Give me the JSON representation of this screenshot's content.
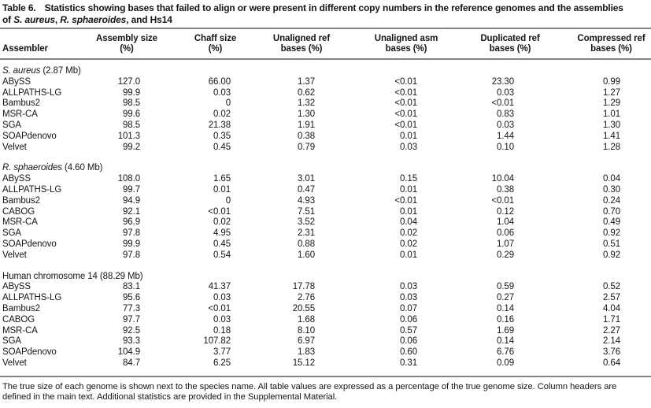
{
  "colors": {
    "background": "#ffffff",
    "text": "#151515",
    "rule": "#848484"
  },
  "table": {
    "title": {
      "line1_segments": [
        {
          "text": "Table 6.",
          "label": true
        },
        {
          "text": "Statistics showing bases that failed to align or were present in different copy numbers in the reference genomes and the assemblies"
        }
      ],
      "line2_segments": [
        {
          "text": "of "
        },
        {
          "text": "S. aureus",
          "italic": true
        },
        {
          "text": ", "
        },
        {
          "text": "R. sphaeroides",
          "italic": true
        },
        {
          "text": ", and Hs14"
        }
      ]
    },
    "columns": [
      {
        "line1": "Assembler",
        "line2": ""
      },
      {
        "line1": "Assembly size",
        "line2": "(%)"
      },
      {
        "line1": "Chaff size",
        "line2": "(%)"
      },
      {
        "line1": "Unaligned ref",
        "line2": "bases (%)"
      },
      {
        "line1": "Unaligned asm",
        "line2": "bases (%)"
      },
      {
        "line1": "Duplicated ref",
        "line2": "bases (%)"
      },
      {
        "line1": "Compressed ref",
        "line2": "bases (%)"
      }
    ],
    "sections": [
      {
        "label_segments": [
          {
            "text": "S. aureus",
            "italic": true
          },
          {
            "text": " (2.87 Mb)"
          }
        ],
        "rows": [
          {
            "assembler": "ABySS",
            "values": [
              "127.0",
              "66.00",
              "1.37",
              "<0.01",
              "23.30",
              "0.99"
            ]
          },
          {
            "assembler": "ALLPATHS-LG",
            "values": [
              "99.9",
              "0.03",
              "0.62",
              "<0.01",
              "0.03",
              "1.27"
            ]
          },
          {
            "assembler": "Bambus2",
            "values": [
              "98.5",
              "0",
              "1.32",
              "<0.01",
              "<0.01",
              "1.29"
            ]
          },
          {
            "assembler": "MSR-CA",
            "values": [
              "99.6",
              "0.02",
              "1.30",
              "<0.01",
              "0.83",
              "1.01"
            ]
          },
          {
            "assembler": "SGA",
            "values": [
              "98.5",
              "21.38",
              "1.91",
              "<0.01",
              "0.03",
              "1.30"
            ]
          },
          {
            "assembler": "SOAPdenovo",
            "values": [
              "101.3",
              "0.35",
              "0.38",
              "0.01",
              "1.44",
              "1.41"
            ]
          },
          {
            "assembler": "Velvet",
            "values": [
              "99.2",
              "0.45",
              "0.79",
              "0.03",
              "0.10",
              "1.28"
            ]
          }
        ]
      },
      {
        "label_segments": [
          {
            "text": "R. sphaeroides",
            "italic": true
          },
          {
            "text": " (4.60 Mb)"
          }
        ],
        "rows": [
          {
            "assembler": "ABySS",
            "values": [
              "108.0",
              "1.65",
              "3.01",
              "0.15",
              "10.04",
              "0.04"
            ]
          },
          {
            "assembler": "ALLPATHS-LG",
            "values": [
              "99.7",
              "0.01",
              "0.47",
              "0.01",
              "0.38",
              "0.30"
            ]
          },
          {
            "assembler": "Bambus2",
            "values": [
              "94.9",
              "0",
              "4.93",
              "<0.01",
              "<0.01",
              "0.24"
            ]
          },
          {
            "assembler": "CABOG",
            "values": [
              "92.1",
              "<0.01",
              "7.51",
              "0.01",
              "0.12",
              "0.70"
            ]
          },
          {
            "assembler": "MSR-CA",
            "values": [
              "96.9",
              "0.02",
              "3.52",
              "0.04",
              "1.04",
              "0.49"
            ]
          },
          {
            "assembler": "SGA",
            "values": [
              "97.8",
              "4.95",
              "2.31",
              "0.02",
              "0.06",
              "0.92"
            ]
          },
          {
            "assembler": "SOAPdenovo",
            "values": [
              "99.9",
              "0.45",
              "0.88",
              "0.02",
              "1.07",
              "0.51"
            ]
          },
          {
            "assembler": "Velvet",
            "values": [
              "97.8",
              "0.54",
              "1.60",
              "0.01",
              "0.29",
              "0.92"
            ]
          }
        ]
      },
      {
        "label_segments": [
          {
            "text": "Human chromosome 14 (88.29 Mb)"
          }
        ],
        "rows": [
          {
            "assembler": "ABySS",
            "values": [
              "83.1",
              "41.37",
              "17.78",
              "0.03",
              "0.59",
              "0.52"
            ]
          },
          {
            "assembler": "ALLPATHS-LG",
            "values": [
              "95.6",
              "0.03",
              "2.76",
              "0.03",
              "0.27",
              "2.57"
            ]
          },
          {
            "assembler": "Bambus2",
            "values": [
              "77.3",
              "<0.01",
              "20.55",
              "0.07",
              "0.14",
              "4.04"
            ]
          },
          {
            "assembler": "CABOG",
            "values": [
              "97.7",
              "0.03",
              "1.68",
              "0.06",
              "0.16",
              "1.71"
            ]
          },
          {
            "assembler": "MSR-CA",
            "values": [
              "92.5",
              "0.18",
              "8.10",
              "0.57",
              "1.69",
              "2.27"
            ]
          },
          {
            "assembler": "SGA",
            "values": [
              "93.3",
              "107.82",
              "6.97",
              "0.06",
              "0.14",
              "2.14"
            ]
          },
          {
            "assembler": "SOAPdenovo",
            "values": [
              "104.9",
              "3.77",
              "1.83",
              "0.60",
              "6.76",
              "3.76"
            ]
          },
          {
            "assembler": "Velvet",
            "values": [
              "84.7",
              "6.25",
              "15.12",
              "0.31",
              "0.09",
              "0.64"
            ]
          }
        ]
      }
    ],
    "footnote": "The true size of each genome is shown next to the species name. All table values are expressed as a percentage of the true genome size. Column headers are defined in the main text. Additional statistics are provided in the Supplemental Material."
  }
}
